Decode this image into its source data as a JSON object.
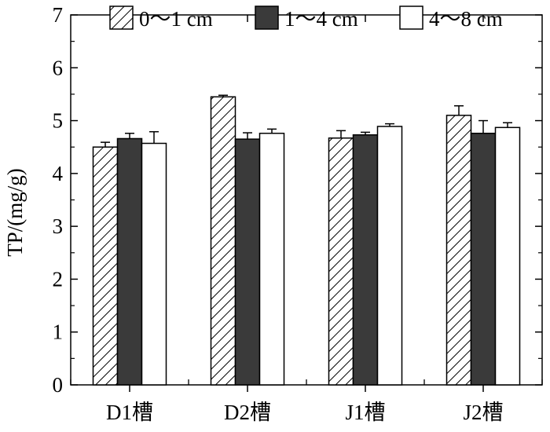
{
  "chart_data": {
    "type": "bar",
    "title": "",
    "xlabel": "",
    "ylabel": "TP/(mg/g)",
    "ylim": [
      0,
      7
    ],
    "yticks": [
      "0",
      "1",
      "2",
      "3",
      "4",
      "5",
      "6",
      "7"
    ],
    "categories": [
      "D1槽",
      "D2槽",
      "J1槽",
      "J2槽"
    ],
    "series": [
      {
        "name": "0～1 cm",
        "pattern": "hatch",
        "color": "#ffffff",
        "values": [
          4.5,
          5.45,
          4.67,
          5.1
        ],
        "errors": [
          0.09,
          0.03,
          0.14,
          0.18
        ]
      },
      {
        "name": "1～4 cm",
        "pattern": "solid",
        "color": "#3a3a3a",
        "values": [
          4.66,
          4.65,
          4.73,
          4.76
        ],
        "errors": [
          0.1,
          0.12,
          0.05,
          0.24
        ]
      },
      {
        "name": "4～8 cm",
        "pattern": "solid",
        "color": "#ffffff",
        "values": [
          4.57,
          4.76,
          4.89,
          4.87
        ],
        "errors": [
          0.22,
          0.08,
          0.05,
          0.09
        ]
      }
    ],
    "legend_position": "top",
    "grid": false
  }
}
